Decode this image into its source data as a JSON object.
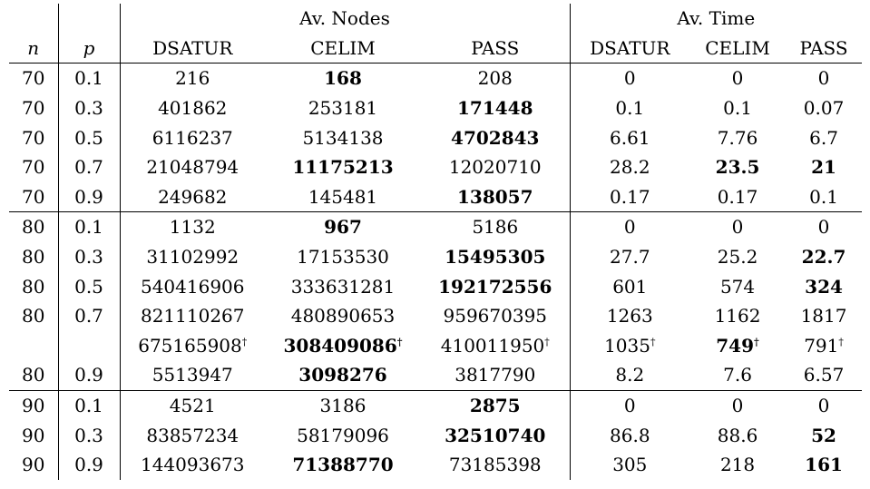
{
  "header": {
    "group_nodes": "Av. Nodes",
    "group_time": "Av. Time",
    "col_n": "n",
    "col_p": "p",
    "nodes_cols": [
      "DSATUR",
      "CELIM",
      "PASS"
    ],
    "time_cols": [
      "DSATUR",
      "CELIM",
      "PASS"
    ]
  },
  "dagger": "†",
  "rows": [
    {
      "n": "70",
      "p": "0.1",
      "cells": [
        {
          "v": "216"
        },
        {
          "v": "168",
          "bold": true
        },
        {
          "v": "208"
        },
        {
          "v": "0"
        },
        {
          "v": "0"
        },
        {
          "v": "0"
        }
      ]
    },
    {
      "n": "70",
      "p": "0.3",
      "cells": [
        {
          "v": "401862"
        },
        {
          "v": "253181"
        },
        {
          "v": "171448",
          "bold": true
        },
        {
          "v": "0.1"
        },
        {
          "v": "0.1"
        },
        {
          "v": "0.07"
        }
      ]
    },
    {
      "n": "70",
      "p": "0.5",
      "cells": [
        {
          "v": "6116237"
        },
        {
          "v": "5134138"
        },
        {
          "v": "4702843",
          "bold": true
        },
        {
          "v": "6.61"
        },
        {
          "v": "7.76"
        },
        {
          "v": "6.7"
        }
      ]
    },
    {
      "n": "70",
      "p": "0.7",
      "cells": [
        {
          "v": "21048794"
        },
        {
          "v": "11175213",
          "bold": true
        },
        {
          "v": "12020710"
        },
        {
          "v": "28.2"
        },
        {
          "v": "23.5",
          "bold": true
        },
        {
          "v": "21",
          "bold": true
        }
      ]
    },
    {
      "n": "70",
      "p": "0.9",
      "rule": true,
      "cells": [
        {
          "v": "249682"
        },
        {
          "v": "145481"
        },
        {
          "v": "138057",
          "bold": true
        },
        {
          "v": "0.17"
        },
        {
          "v": "0.17"
        },
        {
          "v": "0.1"
        }
      ]
    },
    {
      "n": "80",
      "p": "0.1",
      "cells": [
        {
          "v": "1132"
        },
        {
          "v": "967",
          "bold": true
        },
        {
          "v": "5186"
        },
        {
          "v": "0"
        },
        {
          "v": "0"
        },
        {
          "v": "0"
        }
      ]
    },
    {
      "n": "80",
      "p": "0.3",
      "cells": [
        {
          "v": "31102992"
        },
        {
          "v": "17153530"
        },
        {
          "v": "15495305",
          "bold": true
        },
        {
          "v": "27.7"
        },
        {
          "v": "25.2"
        },
        {
          "v": "22.7",
          "bold": true
        }
      ]
    },
    {
      "n": "80",
      "p": "0.5",
      "cells": [
        {
          "v": "540416906"
        },
        {
          "v": "333631281"
        },
        {
          "v": "192172556",
          "bold": true
        },
        {
          "v": "601"
        },
        {
          "v": "574"
        },
        {
          "v": "324",
          "bold": true
        }
      ]
    },
    {
      "n": "80",
      "p": "0.7",
      "cells": [
        {
          "v": "821110267"
        },
        {
          "v": "480890653"
        },
        {
          "v": "959670395"
        },
        {
          "v": "1263"
        },
        {
          "v": "1162"
        },
        {
          "v": "1817"
        }
      ]
    },
    {
      "n": "",
      "p": "",
      "cells": [
        {
          "v": "675165908",
          "dag": true
        },
        {
          "v": "308409086",
          "bold": true,
          "dag": true
        },
        {
          "v": "410011950",
          "dag": true
        },
        {
          "v": "1035",
          "dag": true
        },
        {
          "v": "749",
          "bold": true,
          "dag": true
        },
        {
          "v": "791",
          "dag": true
        }
      ]
    },
    {
      "n": "80",
      "p": "0.9",
      "rule": true,
      "cells": [
        {
          "v": "5513947"
        },
        {
          "v": "3098276",
          "bold": true
        },
        {
          "v": "3817790"
        },
        {
          "v": "8.2"
        },
        {
          "v": "7.6"
        },
        {
          "v": "6.57"
        }
      ]
    },
    {
      "n": "90",
      "p": "0.1",
      "cells": [
        {
          "v": "4521"
        },
        {
          "v": "3186"
        },
        {
          "v": "2875",
          "bold": true
        },
        {
          "v": "0"
        },
        {
          "v": "0"
        },
        {
          "v": "0"
        }
      ]
    },
    {
      "n": "90",
      "p": "0.3",
      "cells": [
        {
          "v": "83857234"
        },
        {
          "v": "58179096"
        },
        {
          "v": "32510740",
          "bold": true
        },
        {
          "v": "86.8"
        },
        {
          "v": "88.6"
        },
        {
          "v": "52",
          "bold": true
        }
      ]
    },
    {
      "n": "90",
      "p": "0.9",
      "cells": [
        {
          "v": "144093673"
        },
        {
          "v": "71388770",
          "bold": true
        },
        {
          "v": "73185398"
        },
        {
          "v": "305"
        },
        {
          "v": "218"
        },
        {
          "v": "161",
          "bold": true
        }
      ]
    }
  ]
}
